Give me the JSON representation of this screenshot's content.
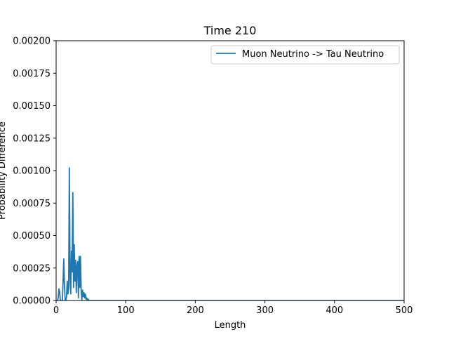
{
  "chart_data": {
    "type": "line",
    "title": "Time 210",
    "xlabel": "Length",
    "ylabel": "Probability Difference",
    "xlim": [
      0,
      500
    ],
    "ylim": [
      0,
      0.002
    ],
    "x_ticks": [
      "0",
      "100",
      "200",
      "300",
      "400",
      "500"
    ],
    "y_ticks": [
      "0.00000",
      "0.00025",
      "0.00050",
      "0.00075",
      "0.00100",
      "0.00125",
      "0.00150",
      "0.00175",
      "0.00200"
    ],
    "grid": false,
    "legend_position": "top-right",
    "series": [
      {
        "name": "Muon Neutrino -> Tau Neutrino",
        "color": "#1f77b4",
        "x": [
          0,
          2,
          3,
          4,
          5,
          6,
          7,
          8,
          9,
          10,
          11,
          12,
          13,
          14,
          15,
          16,
          17,
          18,
          19,
          20,
          21,
          22,
          23,
          24,
          25,
          26,
          27,
          28,
          29,
          30,
          31,
          32,
          33,
          34,
          35,
          36,
          37,
          38,
          39,
          40,
          41,
          42,
          43,
          44,
          45,
          46,
          47,
          48,
          49,
          50,
          52,
          55,
          60,
          100,
          200,
          300,
          400,
          500
        ],
        "y": [
          0,
          0,
          2e-05,
          9e-05,
          7e-05,
          0,
          0,
          0,
          0,
          0.00015,
          0.00032,
          0.00012,
          0,
          0,
          3e-05,
          0.00015,
          5e-05,
          0.0001,
          0.00102,
          0.00018,
          5e-05,
          0.00038,
          0.00022,
          0.00083,
          0.0001,
          0.00043,
          0.00015,
          0.00031,
          6e-05,
          0.00027,
          0.0003,
          2e-05,
          0.00034,
          0.0001,
          0.00034,
          8e-05,
          0,
          8e-05,
          3e-05,
          6e-05,
          2e-05,
          5e-05,
          1e-05,
          2e-05,
          0,
          1e-05,
          0,
          0,
          0,
          0,
          0,
          0,
          0,
          0,
          0,
          0,
          0,
          0
        ]
      }
    ]
  }
}
